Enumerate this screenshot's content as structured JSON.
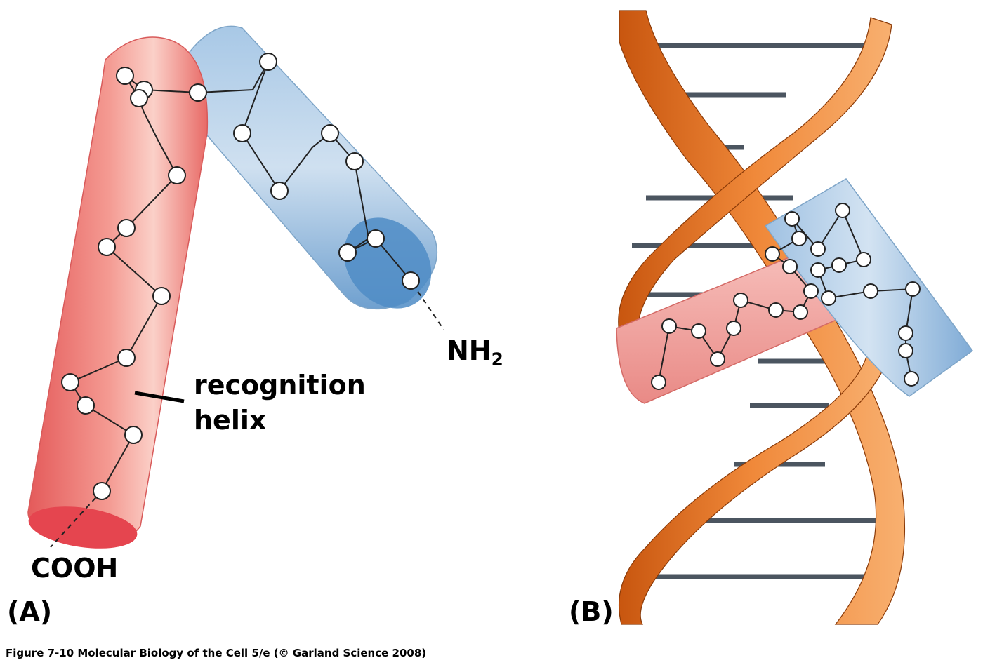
{
  "panel_a": {
    "label": "(A)",
    "terminus_n": "NH",
    "terminus_n_sub": "2",
    "terminus_c": "COOH",
    "callout_line1": "recognition",
    "callout_line2": "helix"
  },
  "panel_b": {
    "label": "(B)"
  },
  "caption": "Figure 7-10  Molecular Biology of the Cell 5/e (© Garland Science 2008)",
  "colors": {
    "red_helix": "#ec6b6b",
    "blue_helix": "#8fb8dc",
    "dna_strand": "#e8771e",
    "base_pairs": "#4b5560"
  }
}
